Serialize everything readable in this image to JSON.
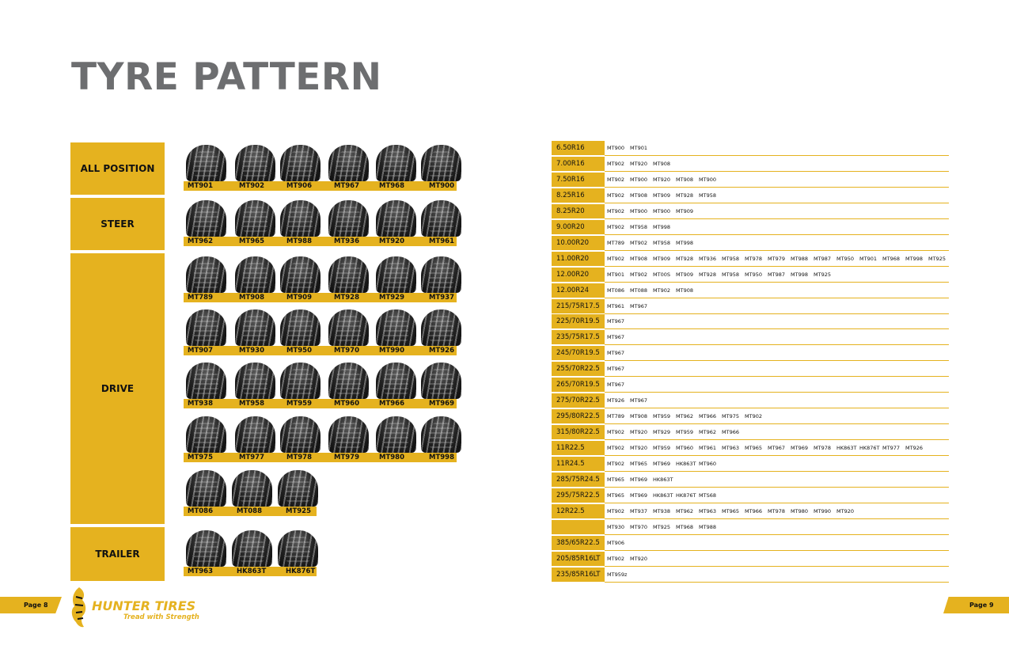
{
  "page_title": "TYRE PATTERN",
  "categories": [
    {
      "name": "ALL POSITION",
      "rows": [
        [
          "MT901",
          "MT902",
          "MT906",
          "MT967",
          "MT968",
          "MT900"
        ]
      ]
    },
    {
      "name": "STEER",
      "rows": [
        [
          "MT962",
          "MT965",
          "MT988",
          "MT936",
          "MT920",
          "MT961"
        ]
      ]
    },
    {
      "name": "DRIVE",
      "rows": [
        [
          "MT789",
          "MT908",
          "MT909",
          "MT928",
          "MT929",
          "MT937"
        ],
        [
          "MT907",
          "MT930",
          "MT950",
          "MT970",
          "MT990",
          "MT926"
        ],
        [
          "MT938",
          "MT958",
          "MT959",
          "MT960",
          "MT966",
          "MT969"
        ],
        [
          "MT975",
          "MT977",
          "MT978",
          "MT979",
          "MT980",
          "MT998"
        ],
        [
          "MT086",
          "MT088",
          "MT925"
        ]
      ]
    },
    {
      "name": "TRAILER",
      "rows": [
        [
          "MT963",
          "HK863T",
          "HK876T"
        ]
      ]
    }
  ],
  "size_table": [
    {
      "size": "6.50R16",
      "models": [
        "MT900",
        "MT901"
      ]
    },
    {
      "size": "7.00R16",
      "models": [
        "MT902",
        "MT920",
        "MT908"
      ]
    },
    {
      "size": "7.50R16",
      "models": [
        "MT902",
        "MT900",
        "MT920",
        "MT908",
        "MT900"
      ]
    },
    {
      "size": "8.25R16",
      "models": [
        "MT902",
        "MT908",
        "MT909",
        "MT928",
        "MT958"
      ]
    },
    {
      "size": "8.25R20",
      "models": [
        "MT902",
        "MT900",
        "MT900",
        "MT909"
      ]
    },
    {
      "size": "9.00R20",
      "models": [
        "MT902",
        "MT958",
        "MT998"
      ]
    },
    {
      "size": "10.00R20",
      "models": [
        "MT789",
        "MT902",
        "MT958",
        "MT998"
      ]
    },
    {
      "size": "11.00R20",
      "models": [
        "MT902",
        "MT908",
        "MT909",
        "MT928",
        "MT936",
        "MT958",
        "MT978",
        "MT979",
        "MT988",
        "MT987",
        "MT950",
        "MT901",
        "MT968",
        "MT998",
        "MT925"
      ]
    },
    {
      "size": "12.00R20",
      "models": [
        "MT901",
        "MT902",
        "MT00S",
        "MT909",
        "MT928",
        "MT958",
        "MT950",
        "MT987",
        "MT998",
        "MT925"
      ]
    },
    {
      "size": "12.00R24",
      "models": [
        "MT086",
        "MT088",
        "MT902",
        "MT908"
      ]
    },
    {
      "size": "215/75R17.5",
      "models": [
        "MT961",
        "MT967"
      ]
    },
    {
      "size": "225/70R19.5",
      "models": [
        "MT967"
      ]
    },
    {
      "size": "235/75R17.5",
      "models": [
        "MT967"
      ]
    },
    {
      "size": "245/70R19.5",
      "models": [
        "MT967"
      ]
    },
    {
      "size": "255/70R22.5",
      "models": [
        "MT967"
      ]
    },
    {
      "size": "265/70R19.5",
      "models": [
        "MT967"
      ]
    },
    {
      "size": "275/70R22.5",
      "models": [
        "MT926",
        "MT967"
      ]
    },
    {
      "size": "295/80R22.5",
      "models": [
        "MT789",
        "MT908",
        "MT959",
        "MT962",
        "MT966",
        "MT975",
        "MT902"
      ]
    },
    {
      "size": "315/80R22.5",
      "models": [
        "MT902",
        "MT920",
        "MT929",
        "MT959",
        "MT962",
        "MT966"
      ]
    },
    {
      "size": "11R22.5",
      "models": [
        "MT902",
        "MT920",
        "MT959",
        "MT960",
        "MT961",
        "MT963",
        "MT965",
        "MT967",
        "MT969",
        "MT978",
        "HK863T",
        "HK876T",
        "MT977",
        "MT926"
      ]
    },
    {
      "size": "11R24.5",
      "models": [
        "MT902",
        "MT965",
        "MT969",
        "HK863T",
        "MT960"
      ]
    },
    {
      "size": "285/75R24.5",
      "models": [
        "MT965",
        "MT969",
        "HK863T"
      ]
    },
    {
      "size": "295/75R22.5",
      "models": [
        "MT965",
        "MT969",
        "HK863T",
        "HK876T",
        "MTS68"
      ]
    },
    {
      "size": "12R22.5",
      "models": [
        "MT902",
        "MT937",
        "MT938",
        "MT962",
        "MT963",
        "MT965",
        "MT966",
        "MT978",
        "MT980",
        "MT990",
        "MT920"
      ]
    },
    {
      "size": "",
      "models": [
        "MT930",
        "MT970",
        "MT925",
        "MT968",
        "MT988"
      ]
    },
    {
      "size": "385/65R22.5",
      "models": [
        "MT906"
      ]
    },
    {
      "size": "205/85R16LT",
      "models": [
        "MT902",
        "MT920"
      ]
    },
    {
      "size": "235/85R16LT",
      "models": [
        "MT959z"
      ]
    }
  ],
  "footer": {
    "page_left": "Page 8",
    "page_right": "Page 9",
    "brand_name": "HUNTER TIRES",
    "tagline": "Tread with Strength",
    "icon": "tiger-icon"
  },
  "colors": {
    "accent": "#e5b21f",
    "title_gray": "#6d6e70",
    "text": "#111111"
  }
}
